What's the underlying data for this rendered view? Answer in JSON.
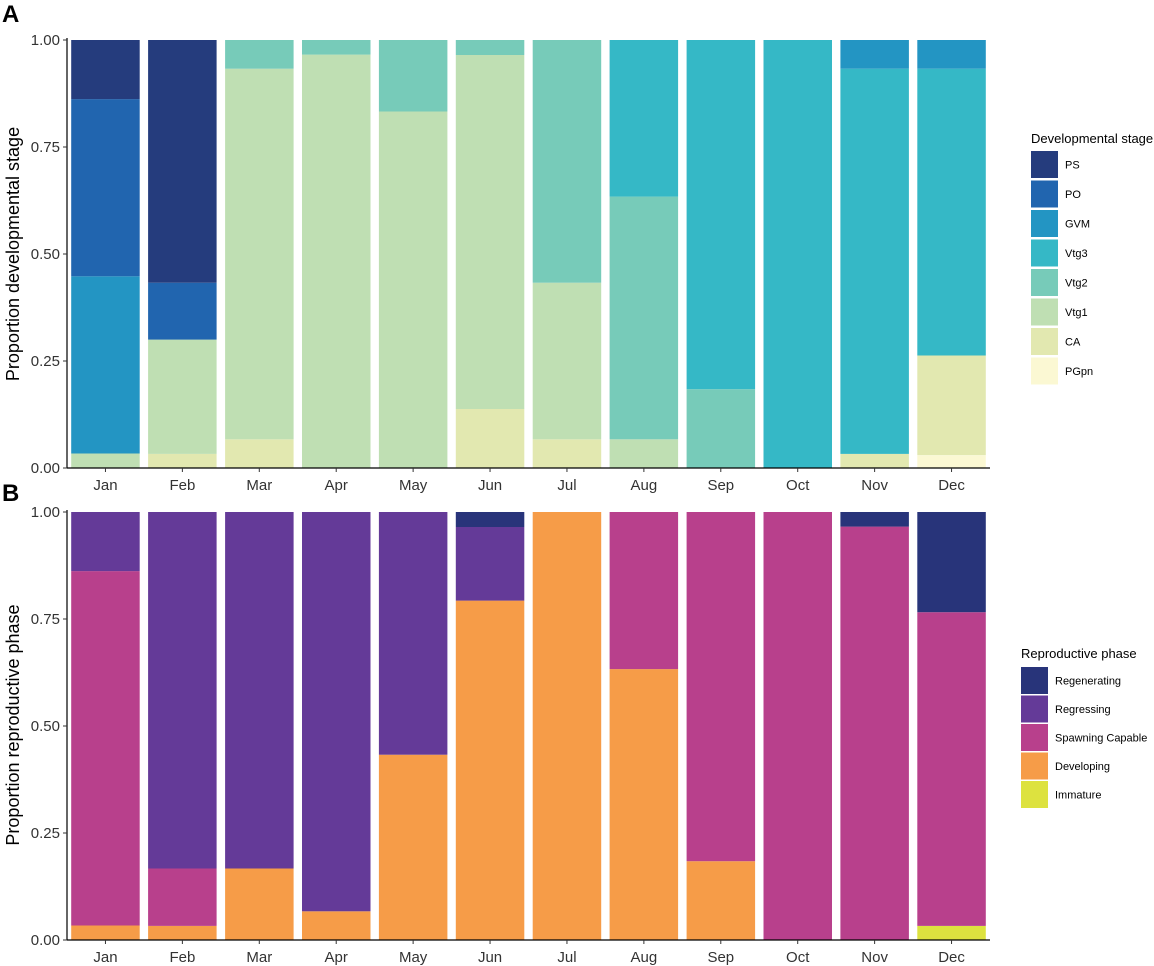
{
  "chart_data": [
    {
      "panel": "A",
      "type": "bar",
      "stacked": true,
      "title": "",
      "xlabel": "",
      "ylabel": "Proportion developmental stage",
      "ylim": [
        0,
        1
      ],
      "yticks": [
        "0.00",
        "0.25",
        "0.50",
        "0.75",
        "1.00"
      ],
      "categories": [
        "Jan",
        "Feb",
        "Mar",
        "Apr",
        "May",
        "Jun",
        "Jul",
        "Aug",
        "Sep",
        "Oct",
        "Nov",
        "Dec"
      ],
      "legend_title": "Developmental stage",
      "legend_position": "right",
      "series": [
        {
          "name": "PGpn",
          "color": "#fbf8d3",
          "values": [
            0,
            0,
            0,
            0,
            0,
            0,
            0,
            0,
            0,
            0,
            0,
            0.03
          ]
        },
        {
          "name": "CA",
          "color": "#e2e8b0",
          "values": [
            0,
            0.033,
            0.067,
            0,
            0,
            0.138,
            0.067,
            0,
            0,
            0,
            0.033,
            0.233
          ]
        },
        {
          "name": "Vtg1",
          "color": "#bfdfb3",
          "values": [
            0.034,
            0.267,
            0.866,
            0.966,
            0.833,
            0.827,
            0.366,
            0.067,
            0,
            0,
            0,
            0
          ]
        },
        {
          "name": "Vtg2",
          "color": "#77cbb9",
          "values": [
            0,
            0,
            0.067,
            0.034,
            0.167,
            0.035,
            0.567,
            0.567,
            0.184,
            0,
            0,
            0
          ]
        },
        {
          "name": "Vtg3",
          "color": "#35b8c6",
          "values": [
            0,
            0,
            0,
            0,
            0,
            0,
            0,
            0.366,
            0.816,
            1.0,
            0.9,
            0.67
          ]
        },
        {
          "name": "GVM",
          "color": "#2395c3",
          "values": [
            0.414,
            0,
            0,
            0,
            0,
            0,
            0,
            0,
            0,
            0,
            0.067,
            0.067
          ]
        },
        {
          "name": "PO",
          "color": "#2165af",
          "values": [
            0.414,
            0.133,
            0,
            0,
            0,
            0,
            0,
            0,
            0,
            0,
            0,
            0
          ]
        },
        {
          "name": "PS",
          "color": "#253c7d",
          "values": [
            0.138,
            0.567,
            0,
            0,
            0,
            0,
            0,
            0,
            0,
            0,
            0,
            0
          ]
        }
      ]
    },
    {
      "panel": "B",
      "type": "bar",
      "stacked": true,
      "title": "",
      "xlabel": "",
      "ylabel": "Proportion reproductive phase",
      "ylim": [
        0,
        1
      ],
      "yticks": [
        "0.00",
        "0.25",
        "0.50",
        "0.75",
        "1.00"
      ],
      "categories": [
        "Jan",
        "Feb",
        "Mar",
        "Apr",
        "May",
        "Jun",
        "Jul",
        "Aug",
        "Sep",
        "Oct",
        "Nov",
        "Dec"
      ],
      "legend_title": "Reproductive phase",
      "legend_position": "right",
      "series": [
        {
          "name": "Immature",
          "color": "#dde23f",
          "values": [
            0,
            0,
            0,
            0,
            0,
            0,
            0,
            0,
            0,
            0,
            0,
            0.033
          ]
        },
        {
          "name": "Developing",
          "color": "#f69c48",
          "values": [
            0.034,
            0.033,
            0.167,
            0.067,
            0.433,
            0.793,
            1.0,
            0.633,
            0.184,
            0,
            0,
            0
          ]
        },
        {
          "name": "Spawning Capable",
          "color": "#b8408c",
          "values": [
            0.828,
            0.134,
            0,
            0,
            0,
            0,
            0,
            0.367,
            0.816,
            1.0,
            0.966,
            0.733
          ]
        },
        {
          "name": "Regressing",
          "color": "#643a98",
          "values": [
            0.138,
            0.833,
            0.833,
            0.933,
            0.567,
            0.172,
            0,
            0,
            0,
            0,
            0,
            0
          ]
        },
        {
          "name": "Regenerating",
          "color": "#28347a",
          "values": [
            0,
            0,
            0,
            0,
            0,
            0.035,
            0,
            0,
            0,
            0,
            0.034,
            0.234
          ]
        }
      ]
    }
  ]
}
